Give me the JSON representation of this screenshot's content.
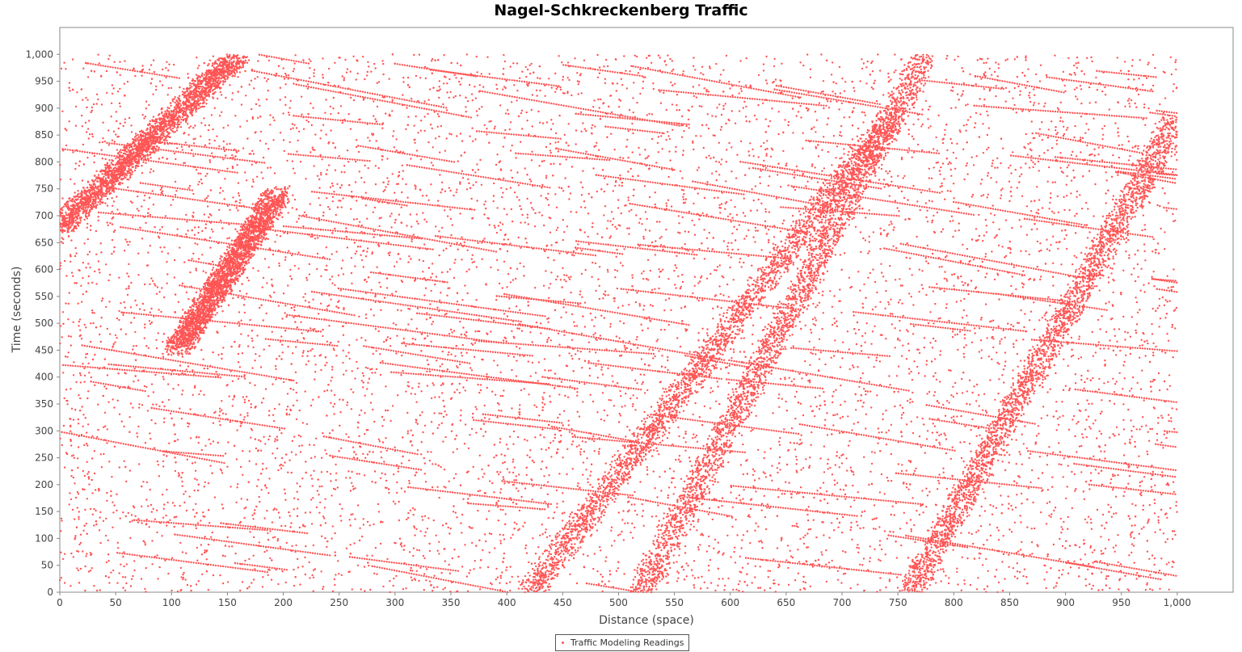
{
  "chart_data": {
    "type": "scatter",
    "title": "Nagel-Schkreckenberg Traffic",
    "xlabel": "Distance (space)",
    "ylabel": "Time (seconds)",
    "xlim": [
      0,
      1050
    ],
    "ylim": [
      0,
      1050
    ],
    "x_ticks": [
      "0",
      "50",
      "100",
      "150",
      "200",
      "250",
      "300",
      "350",
      "400",
      "450",
      "500",
      "550",
      "600",
      "650",
      "700",
      "750",
      "800",
      "850",
      "900",
      "950",
      "1,000"
    ],
    "y_ticks": [
      "0",
      "50",
      "100",
      "150",
      "200",
      "250",
      "300",
      "350",
      "400",
      "450",
      "500",
      "550",
      "600",
      "650",
      "700",
      "750",
      "800",
      "850",
      "900",
      "950",
      "1,000"
    ],
    "grid": false,
    "legend_position": "bottom-center",
    "series": [
      {
        "name": "Traffic Modeling Readings",
        "color": "#ff5555",
        "x_range": [
          0,
          1000
        ],
        "y_range": [
          0,
          1000
        ],
        "jam_waves": [
          {
            "x_start": 420,
            "x_end": 745,
            "t_start": 0,
            "t_end": 890
          },
          {
            "x_start": 520,
            "x_end": 775,
            "t_start": 0,
            "t_end": 1000
          },
          {
            "x_start": 760,
            "x_end": 1000,
            "t_start": 0,
            "t_end": 880
          },
          {
            "x_start": 105,
            "x_end": 195,
            "t_start": 450,
            "t_end": 740
          },
          {
            "x_start": 0,
            "x_end": 160,
            "t_start": 680,
            "t_end": 1000
          }
        ]
      }
    ]
  }
}
